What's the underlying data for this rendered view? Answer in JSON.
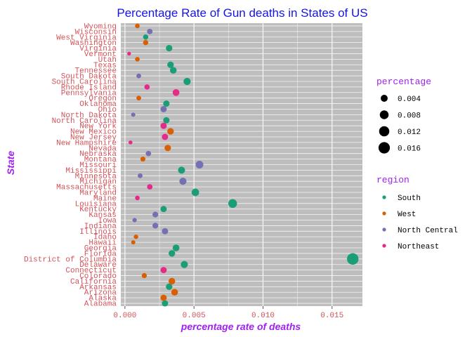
{
  "chart_data": {
    "type": "scatter",
    "title": "Percentage Rate of Gun deaths in States of US",
    "xlabel": "percentage rate of deaths",
    "ylabel": "State",
    "xlim": [
      -0.0003,
      0.0172
    ],
    "x_ticks": [
      0.0,
      0.005,
      0.01,
      0.015
    ],
    "x_tick_labels": [
      "0.000",
      "0.005",
      "0.010",
      "0.015"
    ],
    "grid": true,
    "legend_position": "right",
    "size_legend": {
      "title": "percentage",
      "values": [
        0.004,
        0.008,
        0.012,
        0.016
      ],
      "labels": [
        "0.004",
        "0.008",
        "0.012",
        "0.016"
      ]
    },
    "color_legend": {
      "title": "region",
      "entries": [
        {
          "name": "South",
          "color": "#1b9e77"
        },
        {
          "name": "West",
          "color": "#d95f02"
        },
        {
          "name": "North Central",
          "color": "#7570b3"
        },
        {
          "name": "Northeast",
          "color": "#e7298a"
        }
      ]
    },
    "points": [
      {
        "state": "Alabama",
        "value": 0.0029,
        "region": "South"
      },
      {
        "state": "Alaska",
        "value": 0.0028,
        "region": "West"
      },
      {
        "state": "Arizona",
        "value": 0.0036,
        "region": "West"
      },
      {
        "state": "Arkansas",
        "value": 0.0032,
        "region": "South"
      },
      {
        "state": "California",
        "value": 0.0034,
        "region": "West"
      },
      {
        "state": "Colorado",
        "value": 0.0014,
        "region": "West"
      },
      {
        "state": "Connecticut",
        "value": 0.0028,
        "region": "Northeast"
      },
      {
        "state": "Delaware",
        "value": 0.0043,
        "region": "South"
      },
      {
        "state": "District of Columbia",
        "value": 0.0165,
        "region": "South"
      },
      {
        "state": "Florida",
        "value": 0.0034,
        "region": "South"
      },
      {
        "state": "Georgia",
        "value": 0.0037,
        "region": "South"
      },
      {
        "state": "Hawaii",
        "value": 0.0006,
        "region": "West"
      },
      {
        "state": "Idaho",
        "value": 0.0008,
        "region": "West"
      },
      {
        "state": "Illinois",
        "value": 0.0029,
        "region": "North Central"
      },
      {
        "state": "Indiana",
        "value": 0.0022,
        "region": "North Central"
      },
      {
        "state": "Iowa",
        "value": 0.0007,
        "region": "North Central"
      },
      {
        "state": "Kansas",
        "value": 0.0022,
        "region": "North Central"
      },
      {
        "state": "Kentucky",
        "value": 0.0028,
        "region": "South"
      },
      {
        "state": "Louisiana",
        "value": 0.0078,
        "region": "South"
      },
      {
        "state": "Maine",
        "value": 0.0009,
        "region": "Northeast"
      },
      {
        "state": "Maryland",
        "value": 0.0051,
        "region": "South"
      },
      {
        "state": "Massachusetts",
        "value": 0.0018,
        "region": "Northeast"
      },
      {
        "state": "Michigan",
        "value": 0.0042,
        "region": "North Central"
      },
      {
        "state": "Minnesota",
        "value": 0.0011,
        "region": "North Central"
      },
      {
        "state": "Mississippi",
        "value": 0.0041,
        "region": "South"
      },
      {
        "state": "Missouri",
        "value": 0.0054,
        "region": "North Central"
      },
      {
        "state": "Montana",
        "value": 0.0013,
        "region": "West"
      },
      {
        "state": "Nebraska",
        "value": 0.0017,
        "region": "North Central"
      },
      {
        "state": "Nevada",
        "value": 0.0031,
        "region": "West"
      },
      {
        "state": "New Hampshire",
        "value": 0.0004,
        "region": "Northeast"
      },
      {
        "state": "New Jersey",
        "value": 0.0029,
        "region": "Northeast"
      },
      {
        "state": "New Mexico",
        "value": 0.0033,
        "region": "West"
      },
      {
        "state": "New York",
        "value": 0.0028,
        "region": "Northeast"
      },
      {
        "state": "North Carolina",
        "value": 0.003,
        "region": "South"
      },
      {
        "state": "North Dakota",
        "value": 0.0006,
        "region": "North Central"
      },
      {
        "state": "Ohio",
        "value": 0.0028,
        "region": "North Central"
      },
      {
        "state": "Oklahoma",
        "value": 0.003,
        "region": "South"
      },
      {
        "state": "Oregon",
        "value": 0.001,
        "region": "West"
      },
      {
        "state": "Pennsylvania",
        "value": 0.0037,
        "region": "Northeast"
      },
      {
        "state": "Rhode Island",
        "value": 0.0016,
        "region": "Northeast"
      },
      {
        "state": "South Carolina",
        "value": 0.0045,
        "region": "South"
      },
      {
        "state": "South Dakota",
        "value": 0.001,
        "region": "North Central"
      },
      {
        "state": "Tennessee",
        "value": 0.0035,
        "region": "South"
      },
      {
        "state": "Texas",
        "value": 0.0033,
        "region": "South"
      },
      {
        "state": "Utah",
        "value": 0.0009,
        "region": "West"
      },
      {
        "state": "Vermont",
        "value": 0.0003,
        "region": "Northeast"
      },
      {
        "state": "Virginia",
        "value": 0.0032,
        "region": "South"
      },
      {
        "state": "Washington",
        "value": 0.0015,
        "region": "West"
      },
      {
        "state": "West Virginia",
        "value": 0.0015,
        "region": "South"
      },
      {
        "state": "Wisconsin",
        "value": 0.0018,
        "region": "North Central"
      },
      {
        "state": "Wyoming",
        "value": 0.0009,
        "region": "West"
      }
    ]
  }
}
